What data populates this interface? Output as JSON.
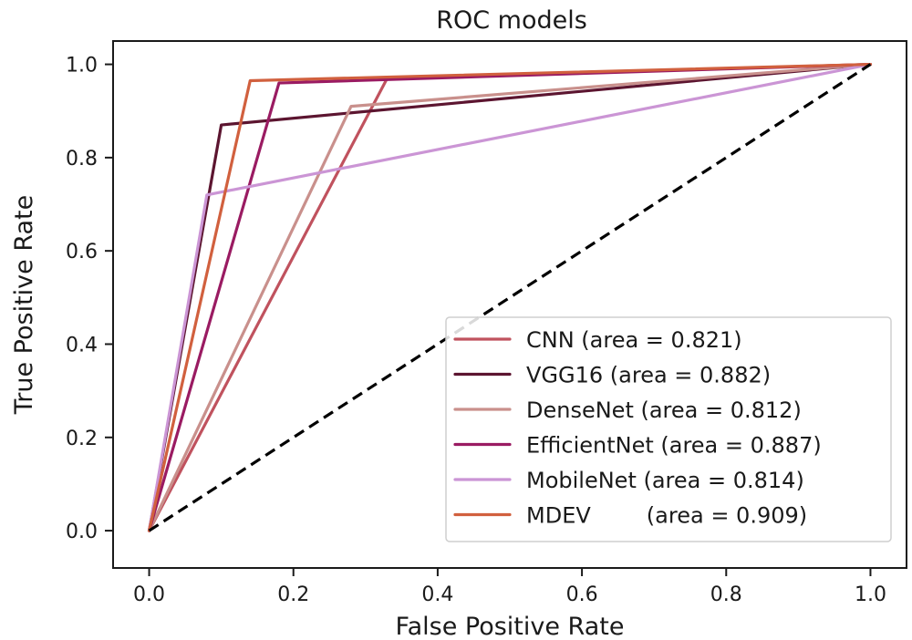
{
  "chart_data": {
    "type": "line",
    "title": "ROC models",
    "xlabel": "False Positive Rate",
    "ylabel": "True Positive Rate",
    "xlim": [
      -0.05,
      1.05
    ],
    "ylim": [
      -0.08,
      1.05
    ],
    "xticks": [
      0.0,
      0.2,
      0.4,
      0.6,
      0.8,
      1.0
    ],
    "yticks": [
      0.0,
      0.2,
      0.4,
      0.6,
      0.8,
      1.0
    ],
    "xtick_labels": [
      "0.0",
      "0.2",
      "0.4",
      "0.6",
      "0.8",
      "1.0"
    ],
    "ytick_labels": [
      "0.0",
      "0.2",
      "0.4",
      "0.6",
      "0.8",
      "1.0"
    ],
    "legend_position": "lower-right",
    "diagonal": {
      "x": [
        0,
        1
      ],
      "y": [
        0,
        1
      ],
      "style": "dashed",
      "color": "#000000"
    },
    "series": [
      {
        "name": "CNN",
        "legend_label": "CNN (area = 0.821)",
        "color": "#c0525e",
        "x": [
          0.0,
          0.33,
          1.0
        ],
        "y": [
          0.0,
          0.97,
          1.0
        ]
      },
      {
        "name": "VGG16",
        "legend_label": "VGG16 (area = 0.882)",
        "color": "#5c1530",
        "x": [
          0.0,
          0.1,
          1.0
        ],
        "y": [
          0.0,
          0.87,
          1.0
        ]
      },
      {
        "name": "DenseNet",
        "legend_label": "DenseNet (area = 0.812)",
        "color": "#c9908c",
        "x": [
          0.0,
          0.28,
          1.0
        ],
        "y": [
          0.0,
          0.91,
          1.0
        ]
      },
      {
        "name": "EfficientNet",
        "legend_label": "EfficientNet (area = 0.887)",
        "color": "#9a1b62",
        "x": [
          0.0,
          0.18,
          1.0
        ],
        "y": [
          0.0,
          0.96,
          1.0
        ]
      },
      {
        "name": "MobileNet",
        "legend_label": "MobileNet (area = 0.814)",
        "color": "#cb95d5",
        "x": [
          0.0,
          0.08,
          1.0
        ],
        "y": [
          0.0,
          0.72,
          1.0
        ]
      },
      {
        "name": "MDEV",
        "legend_label": "MDEV        (area = 0.909)",
        "color": "#d1603e",
        "x": [
          0.0,
          0.14,
          1.0
        ],
        "y": [
          0.0,
          0.965,
          1.0
        ]
      }
    ]
  }
}
